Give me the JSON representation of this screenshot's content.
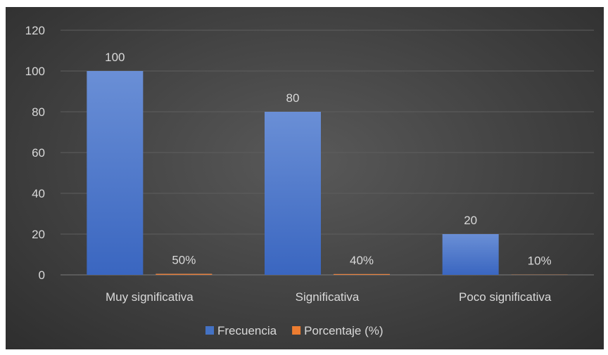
{
  "chart_data": {
    "type": "bar",
    "categories": [
      "Muy significativa",
      "Significativa",
      "Poco significativa"
    ],
    "series": [
      {
        "name": "Frecuencia",
        "values": [
          100,
          80,
          20
        ],
        "labels": [
          "100",
          "80",
          "20"
        ],
        "color": "#4472C4"
      },
      {
        "name": "Porcentaje (%)",
        "values": [
          0.5,
          0.4,
          0.1
        ],
        "labels": [
          "50%",
          "40%",
          "10%"
        ],
        "color": "#ED7D31"
      }
    ],
    "yticks": [
      "0",
      "20",
      "40",
      "60",
      "80",
      "100",
      "120"
    ],
    "ylim": [
      0,
      120
    ],
    "grid": true,
    "legend": "bottom",
    "title": "",
    "xlabel": "",
    "ylabel": ""
  }
}
